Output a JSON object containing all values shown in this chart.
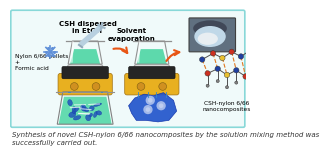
{
  "bg_color": "#ffffff",
  "border_color": "#88d8d8",
  "border_facecolor": "#f0fafa",
  "caption": "Synthesis of novel CSH-nylon 6/66 nanocomposites by the solution mixing method was\nsuccessfully carried out.",
  "caption_fontsize": 5.0,
  "label_csh": "CSH dispersed\nin EtOH",
  "label_nylon": "Nylon 6/66 pellets\n+\nFormic acid",
  "label_solvent": "Solvent\nevaporation",
  "label_composite": "CSH-nylon 6/66\nnanocomposites",
  "arrow_color": "#e85515",
  "beaker_solution_color": "#55d8a8",
  "hotplate_yellow": "#e8b020",
  "hotplate_dark": "#222222",
  "hotplate_ring": "#d09020",
  "blue_particle_color": "#2255cc",
  "nanocomposite_blob_color": "#2255cc",
  "needle_body_color": "#b8d0e0",
  "needle_tip_color": "#90a8b8",
  "connector_line_color": "#3388cc",
  "mol_line_color": "#505050",
  "mol_orange_color": "#e07820",
  "mol_yellow_color": "#e8c030",
  "mol_red_color": "#cc3020",
  "mol_blue_color": "#2040a0",
  "photo_border": "#404040",
  "photo_bg": "#607080",
  "photo_inner": "#c0d8e8",
  "photo_sample": "#e8eef2",
  "snowflake_color": "#6090d8"
}
